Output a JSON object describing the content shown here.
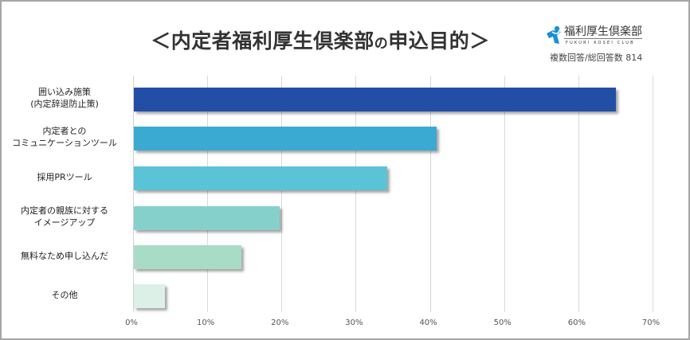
{
  "title": {
    "open": "＜",
    "main": "内定者福利厚生倶楽部",
    "particle": "の",
    "rest": "申込目的",
    "close": "＞"
  },
  "logo": {
    "icon": "person-icon",
    "name": "福利厚生倶楽部",
    "sub": "FUKURI KOSEI CLUB",
    "color": "#1a8fd6"
  },
  "subtitle": "複数回答/総回答数 814",
  "axis": {
    "ticks": [
      "0%",
      "10%",
      "20%",
      "30%",
      "40%",
      "50%",
      "60%",
      "70%"
    ]
  },
  "categories": [
    {
      "label": "囲い込み施策\n(内定辞退防止策)",
      "color": "#234ea6"
    },
    {
      "label": "内定者との\nコミュニケーションツール",
      "color": "#3aaad2"
    },
    {
      "label": "採用PRツール",
      "color": "#5bc3d6"
    },
    {
      "label": "内定者の親族に対する\nイメージアップ",
      "color": "#86d0cc"
    },
    {
      "label": "無料なため申し込んだ",
      "color": "#a8dcc6"
    },
    {
      "label": "その他",
      "color": "#dcf0e8"
    }
  ],
  "chart_data": {
    "type": "bar",
    "orientation": "horizontal",
    "title": "＜内定者福利厚生倶楽部の申込目的＞",
    "subtitle": "複数回答/総回答数 814",
    "categories": [
      "囲い込み施策(内定辞退防止策)",
      "内定者とのコミュニケーションツール",
      "採用PRツール",
      "内定者の親族に対するイメージアップ",
      "無料なため申し込んだ",
      "その他"
    ],
    "values": [
      65,
      40.8,
      34.1,
      19.6,
      14.5,
      4.2
    ],
    "unit": "%",
    "xlabel": "",
    "ylabel": "",
    "xlim": [
      0,
      70
    ],
    "xticks": [
      0,
      10,
      20,
      30,
      40,
      50,
      60,
      70
    ],
    "grid": "vertical",
    "legend": "none",
    "colors": [
      "#234ea6",
      "#3aaad2",
      "#5bc3d6",
      "#86d0cc",
      "#a8dcc6",
      "#dcf0e8"
    ]
  }
}
